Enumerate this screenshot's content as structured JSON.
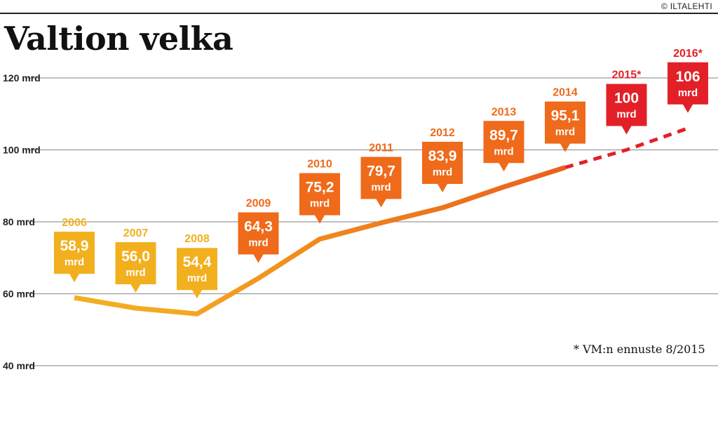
{
  "title": "Valtion velka",
  "credit": "© ILTALEHTI",
  "footnote": "* VM:n ennuste 8/2015",
  "colors": {
    "yellow": "#f2b01f",
    "orange": "#ef6a1a",
    "red": "#e32027",
    "grid": "#9a9a9a"
  },
  "chart_data": {
    "type": "line",
    "title": "Valtion velka",
    "ylim": [
      40,
      120
    ],
    "yticks": [
      {
        "value": 120,
        "label": "120 mrd"
      },
      {
        "value": 100,
        "label": "100 mrd"
      },
      {
        "value": 80,
        "label": "80 mrd"
      },
      {
        "value": 60,
        "label": "60 mrd"
      },
      {
        "value": 40,
        "label": "40 mrd"
      }
    ],
    "points": [
      {
        "year": "2006",
        "value": 58.9,
        "label": "58,9",
        "unit": "mrd",
        "color": "yellow",
        "forecast": false
      },
      {
        "year": "2007",
        "value": 56.0,
        "label": "56,0",
        "unit": "mrd",
        "color": "yellow",
        "forecast": false
      },
      {
        "year": "2008",
        "value": 54.4,
        "label": "54,4",
        "unit": "mrd",
        "color": "yellow",
        "forecast": false
      },
      {
        "year": "2009",
        "value": 64.3,
        "label": "64,3",
        "unit": "mrd",
        "color": "orange",
        "forecast": false
      },
      {
        "year": "2010",
        "value": 75.2,
        "label": "75,2",
        "unit": "mrd",
        "color": "orange",
        "forecast": false
      },
      {
        "year": "2011",
        "value": 79.7,
        "label": "79,7",
        "unit": "mrd",
        "color": "orange",
        "forecast": false
      },
      {
        "year": "2012",
        "value": 83.9,
        "label": "83,9",
        "unit": "mrd",
        "color": "orange",
        "forecast": false
      },
      {
        "year": "2013",
        "value": 89.7,
        "label": "89,7",
        "unit": "mrd",
        "color": "orange",
        "forecast": false
      },
      {
        "year": "2014",
        "value": 95.1,
        "label": "95,1",
        "unit": "mrd",
        "color": "orange",
        "forecast": false
      },
      {
        "year": "2015*",
        "value": 100,
        "label": "100",
        "unit": "mrd",
        "color": "red",
        "forecast": true
      },
      {
        "year": "2016*",
        "value": 106,
        "label": "106",
        "unit": "mrd",
        "color": "red",
        "forecast": true
      }
    ]
  }
}
